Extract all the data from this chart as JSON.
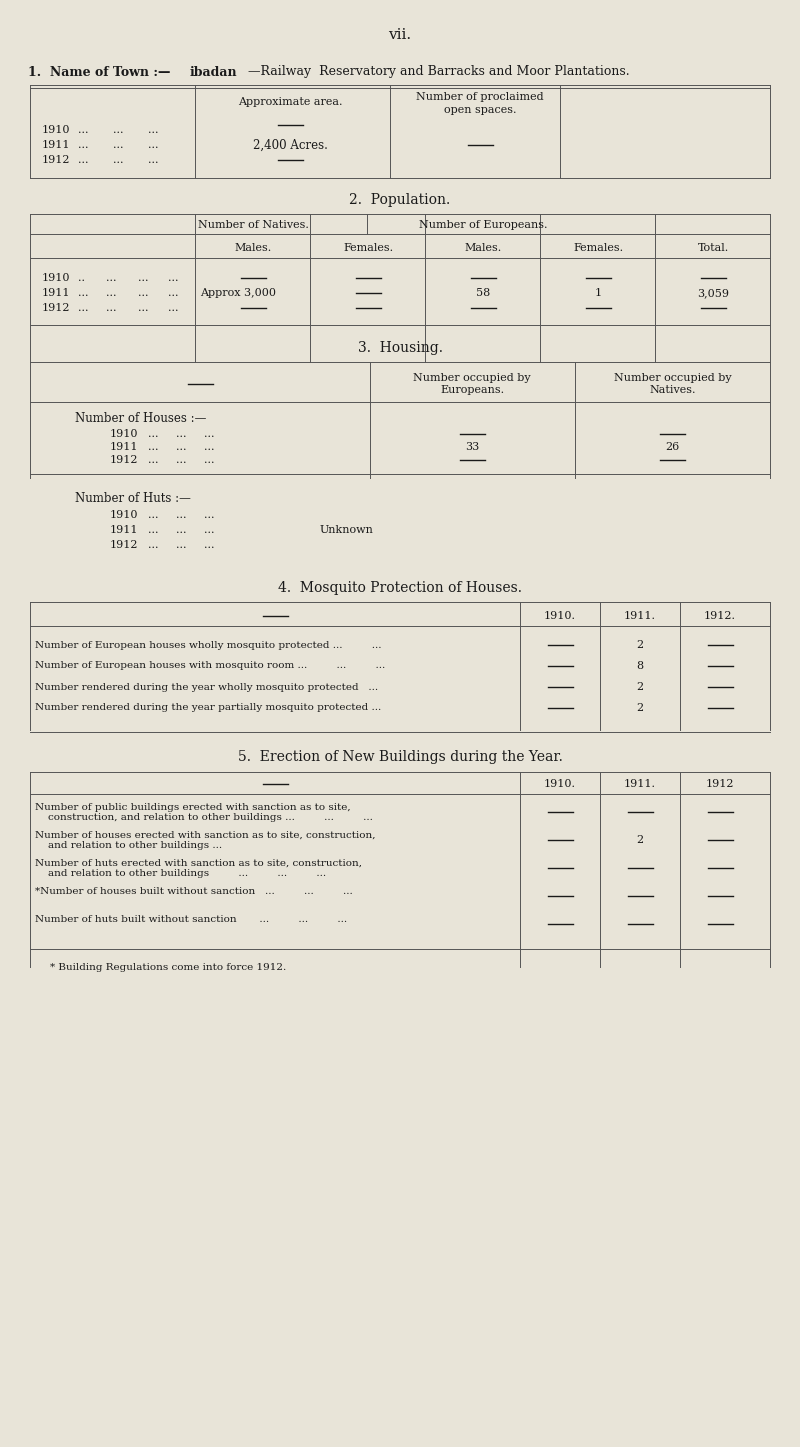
{
  "bg_color": "#e8e4d8",
  "text_color": "#1a1a1a",
  "page_title": "vii.",
  "section1_title_a": "1.  Name of Town :—",
  "section1_title_b": "ibadan",
  "section1_title_c": "—Railway  Reservatory and Barracks and Moor Plantations.",
  "section2_title": "2.  Population.",
  "section3_title": "3.  Housing.",
  "section4_title": "4.  Mosquito Protection of Houses.",
  "section5_title": "5.  Erection of New Buildings during the Year.",
  "footnote": "* Building Regulations come into force 1912."
}
